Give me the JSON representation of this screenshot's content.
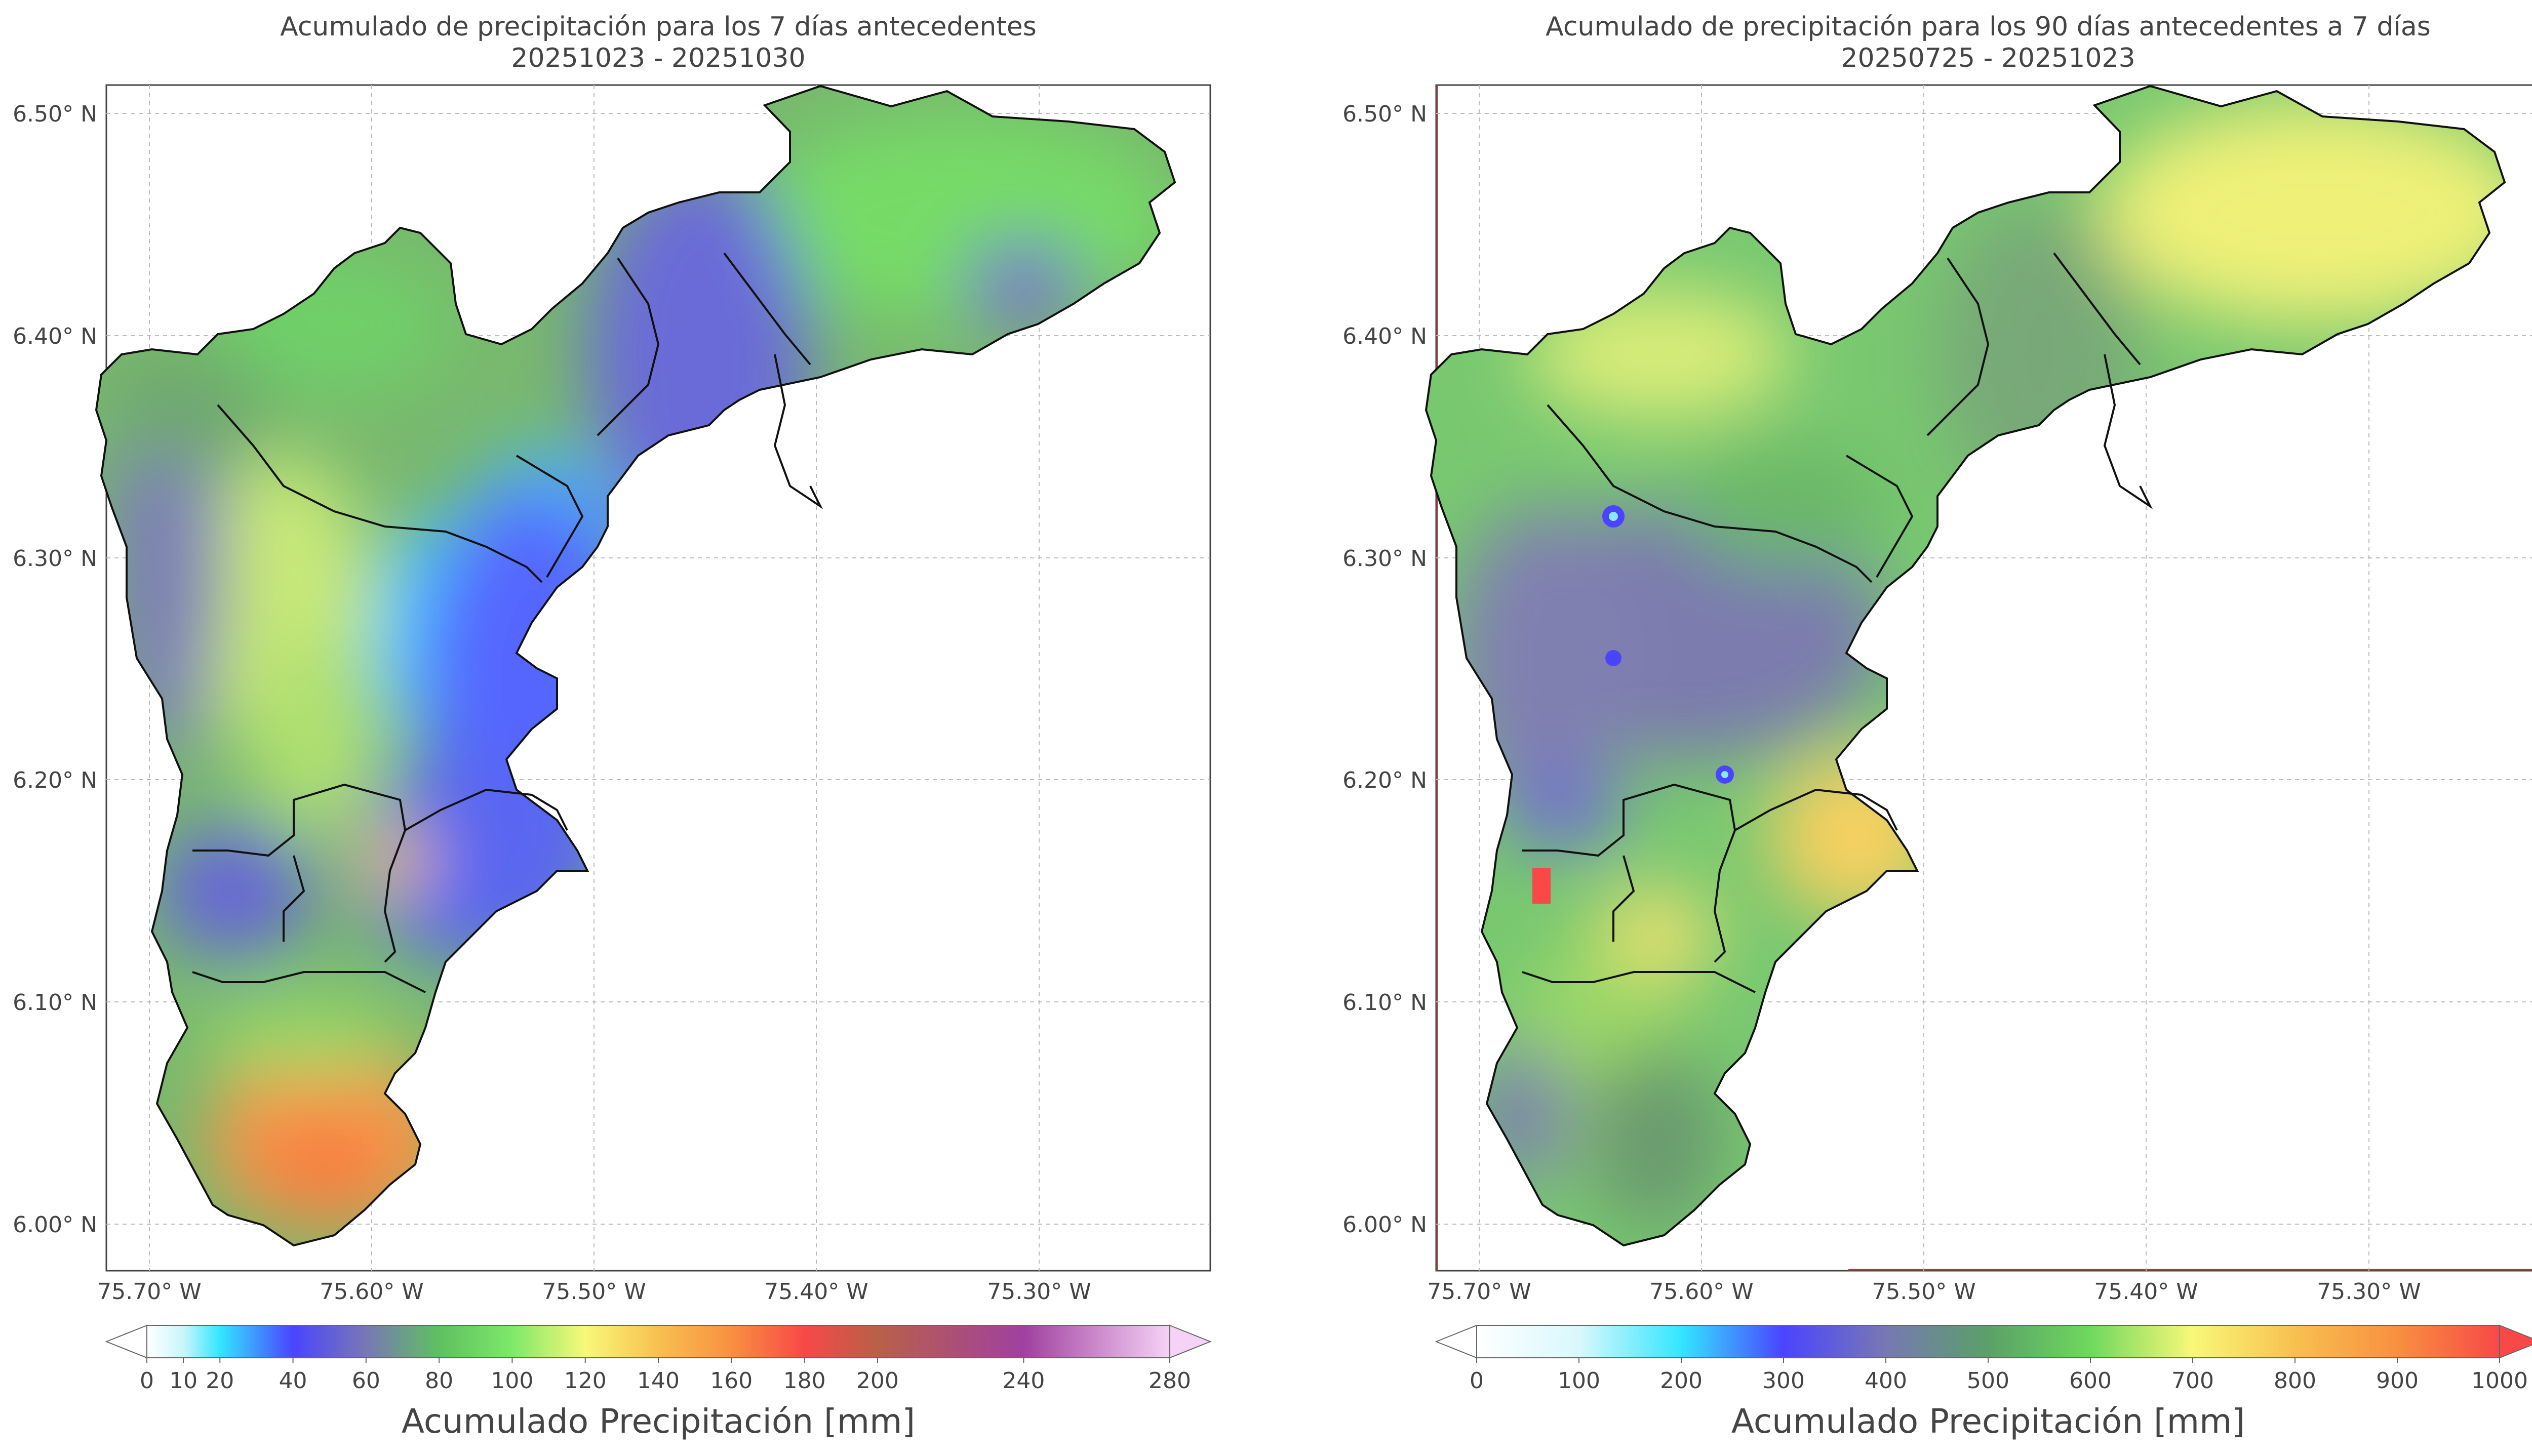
{
  "panels": [
    {
      "title_line1": "Acumulado de precipitación para los 7 días antecedentes",
      "title_line2": "20251023 - 20251030",
      "lat_ticks": [
        "6.50° N",
        "6.40° N",
        "6.30° N",
        "6.20° N",
        "6.10° N",
        "6.00° N"
      ],
      "lon_ticks": [
        "75.70° W",
        "75.60° W",
        "75.50° W",
        "75.40° W",
        "75.30° W"
      ],
      "colorbar": {
        "label": "Acumulado Precipitación [mm]",
        "ticks": [
          "0",
          "10",
          "20",
          "40",
          "60",
          "80",
          "100",
          "120",
          "140",
          "160",
          "180",
          "200",
          "240",
          "280"
        ],
        "tick_values": [
          0,
          10,
          20,
          40,
          60,
          80,
          100,
          120,
          140,
          160,
          180,
          200,
          240,
          280
        ],
        "min": 0,
        "max": 280,
        "stops": [
          {
            "v": 0,
            "c": "#ffffff"
          },
          {
            "v": 10,
            "c": "#c9f6fb"
          },
          {
            "v": 20,
            "c": "#33e6ff"
          },
          {
            "v": 40,
            "c": "#4a44ff"
          },
          {
            "v": 60,
            "c": "#7878b4"
          },
          {
            "v": 80,
            "c": "#5fc060"
          },
          {
            "v": 100,
            "c": "#7ee86a"
          },
          {
            "v": 120,
            "c": "#f8f878"
          },
          {
            "v": 140,
            "c": "#f8c050"
          },
          {
            "v": 160,
            "c": "#f89040"
          },
          {
            "v": 180,
            "c": "#f84848"
          },
          {
            "v": 200,
            "c": "#b86048"
          },
          {
            "v": 240,
            "c": "#a040a0"
          },
          {
            "v": 280,
            "c": "#f6d2f6"
          }
        ]
      }
    },
    {
      "title_line1": "Acumulado de precipitación para los 90 días antecedentes a 7 días",
      "title_line2": "20250725 - 20251023",
      "lat_ticks": [
        "6.50° N",
        "6.40° N",
        "6.30° N",
        "6.20° N",
        "6.10° N",
        "6.00° N"
      ],
      "lon_ticks": [
        "75.70° W",
        "75.60° W",
        "75.50° W",
        "75.40° W",
        "75.30° W"
      ],
      "colorbar": {
        "label": "Acumulado Precipitación [mm]",
        "ticks": [
          "0",
          "100",
          "200",
          "300",
          "400",
          "500",
          "600",
          "700",
          "800",
          "900",
          "1000"
        ],
        "tick_values": [
          0,
          100,
          200,
          300,
          400,
          500,
          600,
          700,
          800,
          900,
          1000
        ],
        "min": 0,
        "max": 1000,
        "stops": [
          {
            "v": 0,
            "c": "#ffffff"
          },
          {
            "v": 100,
            "c": "#d8f8fc"
          },
          {
            "v": 200,
            "c": "#33e6ff"
          },
          {
            "v": 300,
            "c": "#4a44ff"
          },
          {
            "v": 400,
            "c": "#7878b4"
          },
          {
            "v": 500,
            "c": "#5aa068"
          },
          {
            "v": 600,
            "c": "#6fd85e"
          },
          {
            "v": 700,
            "c": "#f8f878"
          },
          {
            "v": 800,
            "c": "#f8c050"
          },
          {
            "v": 900,
            "c": "#f89040"
          },
          {
            "v": 1000,
            "c": "#f84848"
          }
        ]
      }
    }
  ]
}
